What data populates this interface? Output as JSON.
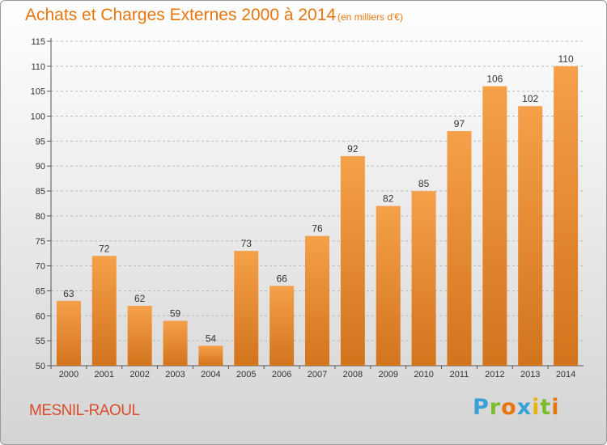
{
  "title": "Achats et Charges Externes 2000 à 2014",
  "subtitle": "(en milliers d'€)",
  "town": "MESNIL-RAOUL",
  "brand": [
    "P",
    "r",
    "o",
    "x",
    "i",
    "t",
    "i"
  ],
  "brand_colors": [
    "#3aa0d8",
    "#7cbd2e",
    "#e8760e",
    "#3aa0d8",
    "#e8b30e",
    "#7cbd2e",
    "#e8760e"
  ],
  "colors": {
    "bar_light": "#f5a04a",
    "bar_dark": "#d2741c",
    "accent": "#e8760e",
    "grid": "#bbbbbb"
  },
  "chart_data": {
    "type": "bar",
    "title": "Achats et Charges Externes 2000 à 2014",
    "subtitle": "(en milliers d'€)",
    "categories": [
      "2000",
      "2001",
      "2002",
      "2003",
      "2004",
      "2005",
      "2006",
      "2007",
      "2008",
      "2009",
      "2010",
      "2011",
      "2012",
      "2013",
      "2014"
    ],
    "values": [
      63,
      72,
      62,
      59,
      54,
      73,
      66,
      76,
      92,
      82,
      85,
      97,
      106,
      102,
      110
    ],
    "ylim": [
      50,
      115
    ],
    "yticks": [
      50,
      55,
      60,
      65,
      70,
      75,
      80,
      85,
      90,
      95,
      100,
      105,
      110,
      115
    ],
    "grid": true,
    "data_labels": true
  }
}
